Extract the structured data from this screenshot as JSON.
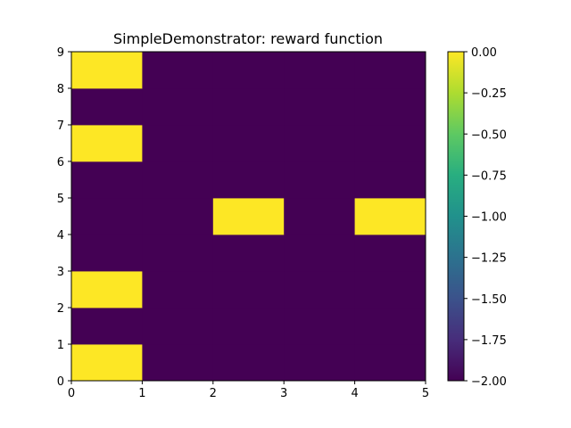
{
  "chart_data": {
    "type": "heatmap",
    "title": "SimpleDemonstrator: reward function",
    "xlabel": "",
    "ylabel": "",
    "x_edges": [
      0,
      1,
      2,
      3,
      4,
      5
    ],
    "y_edges": [
      0,
      1,
      2,
      3,
      4,
      5,
      6,
      7,
      8,
      9
    ],
    "xlim": [
      0,
      5
    ],
    "ylim": [
      0,
      9
    ],
    "xticks": [
      "0",
      "1",
      "2",
      "3",
      "4",
      "5"
    ],
    "yticks": [
      "0",
      "1",
      "2",
      "3",
      "4",
      "5",
      "6",
      "7",
      "8",
      "9"
    ],
    "grid": false,
    "values": [
      [
        0,
        -2,
        -2,
        -2,
        -2
      ],
      [
        -2,
        -2,
        -2,
        -2,
        -2
      ],
      [
        0,
        -2,
        -2,
        -2,
        -2
      ],
      [
        -2,
        -2,
        -2,
        -2,
        -2
      ],
      [
        -2,
        -2,
        0,
        -2,
        0
      ],
      [
        -2,
        -2,
        -2,
        -2,
        -2
      ],
      [
        0,
        -2,
        -2,
        -2,
        -2
      ],
      [
        -2,
        -2,
        -2,
        -2,
        -2
      ],
      [
        0,
        -2,
        -2,
        -2,
        -2
      ]
    ],
    "colorbar": {
      "colormap": "viridis",
      "range": [
        -2.0,
        0.0
      ],
      "ticks": [
        "0.00",
        "−0.25",
        "−0.50",
        "−0.75",
        "−1.00",
        "−1.25",
        "−1.50",
        "−1.75",
        "−2.00"
      ]
    }
  }
}
